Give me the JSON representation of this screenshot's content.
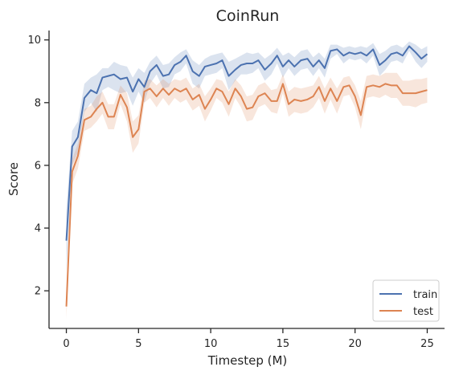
{
  "chart_data": {
    "type": "line",
    "title": "CoinRun",
    "xlabel": "Timestep (M)",
    "ylabel": "Score",
    "xlim": [
      -1.2,
      26.2
    ],
    "ylim": [
      0.8,
      10.3
    ],
    "xticks": [
      0,
      5,
      10,
      15,
      20,
      25
    ],
    "yticks": [
      2,
      4,
      6,
      8,
      10
    ],
    "grid": false,
    "legend_position": "lower-right",
    "x": [
      0,
      0.4,
      0.8,
      1.25,
      1.7,
      2.1,
      2.5,
      2.9,
      3.3,
      3.75,
      4.2,
      4.6,
      5.0,
      5.4,
      5.8,
      6.25,
      6.7,
      7.1,
      7.5,
      7.9,
      8.3,
      8.75,
      9.2,
      9.6,
      10.0,
      10.4,
      10.8,
      11.25,
      11.7,
      12.1,
      12.5,
      12.9,
      13.3,
      13.75,
      14.2,
      14.6,
      15.0,
      15.4,
      15.8,
      16.25,
      16.7,
      17.1,
      17.5,
      17.9,
      18.3,
      18.75,
      19.2,
      19.6,
      20.0,
      20.4,
      20.8,
      21.25,
      21.7,
      22.1,
      22.5,
      22.9,
      23.3,
      23.75,
      24.2,
      24.6,
      25.0
    ],
    "series": [
      {
        "name": "train",
        "color": "#4c72b0",
        "values": [
          3.6,
          6.6,
          6.9,
          8.15,
          8.4,
          8.3,
          8.8,
          8.85,
          8.9,
          8.75,
          8.8,
          8.35,
          8.75,
          8.5,
          9.0,
          9.2,
          8.85,
          8.9,
          9.2,
          9.3,
          9.5,
          9.0,
          8.85,
          9.15,
          9.2,
          9.25,
          9.35,
          8.85,
          9.05,
          9.2,
          9.25,
          9.25,
          9.35,
          9.05,
          9.25,
          9.5,
          9.15,
          9.35,
          9.15,
          9.35,
          9.4,
          9.15,
          9.35,
          9.1,
          9.65,
          9.7,
          9.5,
          9.6,
          9.55,
          9.6,
          9.5,
          9.7,
          9.2,
          9.35,
          9.55,
          9.6,
          9.5,
          9.8,
          9.6,
          9.4,
          9.55
        ],
        "upper": [
          4.6,
          7.1,
          7.4,
          8.6,
          8.8,
          8.9,
          9.1,
          9.1,
          9.3,
          9.2,
          9.15,
          8.8,
          9.1,
          8.95,
          9.3,
          9.5,
          9.2,
          9.25,
          9.45,
          9.6,
          9.7,
          9.35,
          9.2,
          9.4,
          9.5,
          9.55,
          9.6,
          9.3,
          9.4,
          9.5,
          9.6,
          9.55,
          9.6,
          9.4,
          9.55,
          9.75,
          9.5,
          9.6,
          9.45,
          9.65,
          9.7,
          9.45,
          9.6,
          9.4,
          9.85,
          9.85,
          9.75,
          9.8,
          9.75,
          9.8,
          9.75,
          9.9,
          9.55,
          9.65,
          9.8,
          9.85,
          9.75,
          9.95,
          9.85,
          9.7,
          9.8
        ],
        "lower": [
          2.6,
          6.0,
          6.4,
          7.7,
          8.0,
          7.7,
          8.4,
          8.5,
          8.4,
          8.3,
          8.35,
          7.9,
          8.35,
          8.0,
          8.6,
          8.9,
          8.45,
          8.5,
          8.9,
          9.0,
          9.25,
          8.6,
          8.45,
          8.85,
          8.9,
          8.95,
          9.1,
          8.4,
          8.7,
          8.9,
          8.9,
          8.95,
          9.1,
          8.7,
          8.9,
          9.25,
          8.8,
          9.1,
          8.85,
          9.05,
          9.1,
          8.85,
          9.1,
          8.8,
          9.4,
          9.55,
          9.25,
          9.4,
          9.35,
          9.4,
          9.25,
          9.5,
          8.85,
          9.05,
          9.3,
          9.35,
          9.25,
          9.65,
          9.3,
          9.1,
          9.3
        ]
      },
      {
        "name": "test",
        "color": "#dd8452",
        "values": [
          1.5,
          5.8,
          6.3,
          7.45,
          7.55,
          7.8,
          8.0,
          7.55,
          7.55,
          8.25,
          7.85,
          6.9,
          7.15,
          8.35,
          8.45,
          8.2,
          8.45,
          8.25,
          8.45,
          8.35,
          8.45,
          8.1,
          8.25,
          7.8,
          8.1,
          8.45,
          8.35,
          7.95,
          8.45,
          8.2,
          7.8,
          7.85,
          8.2,
          8.3,
          8.05,
          8.05,
          8.6,
          7.95,
          8.1,
          8.05,
          8.1,
          8.2,
          8.5,
          8.05,
          8.45,
          8.05,
          8.5,
          8.55,
          8.2,
          7.6,
          8.5,
          8.55,
          8.5,
          8.6,
          8.55,
          8.55,
          8.3,
          8.3,
          8.3,
          8.35,
          8.4
        ],
        "upper": [
          2.0,
          6.2,
          6.7,
          7.8,
          7.9,
          8.2,
          8.35,
          7.95,
          7.95,
          8.55,
          8.3,
          7.4,
          7.6,
          8.7,
          8.75,
          8.55,
          8.75,
          8.6,
          8.75,
          8.7,
          8.8,
          8.45,
          8.6,
          8.2,
          8.45,
          8.75,
          8.7,
          8.35,
          8.75,
          8.55,
          8.2,
          8.25,
          8.55,
          8.65,
          8.4,
          8.45,
          8.9,
          8.35,
          8.5,
          8.45,
          8.5,
          8.55,
          8.85,
          8.45,
          8.8,
          8.45,
          8.8,
          8.85,
          8.55,
          8.05,
          8.85,
          8.9,
          8.85,
          8.95,
          8.95,
          8.95,
          8.7,
          8.7,
          8.75,
          8.75,
          8.8
        ],
        "lower": [
          1.1,
          5.4,
          5.9,
          7.1,
          7.2,
          7.4,
          7.65,
          7.15,
          7.15,
          7.95,
          7.4,
          6.4,
          6.7,
          8.0,
          8.15,
          7.85,
          8.15,
          7.9,
          8.15,
          8.0,
          8.1,
          7.75,
          7.9,
          7.4,
          7.75,
          8.15,
          8.0,
          7.55,
          8.15,
          7.85,
          7.4,
          7.45,
          7.85,
          7.95,
          7.7,
          7.65,
          8.3,
          7.55,
          7.7,
          7.65,
          7.7,
          7.85,
          8.15,
          7.65,
          8.1,
          7.65,
          8.2,
          8.25,
          7.85,
          7.15,
          8.15,
          8.2,
          8.15,
          8.25,
          8.15,
          8.15,
          7.9,
          7.9,
          7.85,
          7.95,
          8.0
        ]
      }
    ]
  }
}
